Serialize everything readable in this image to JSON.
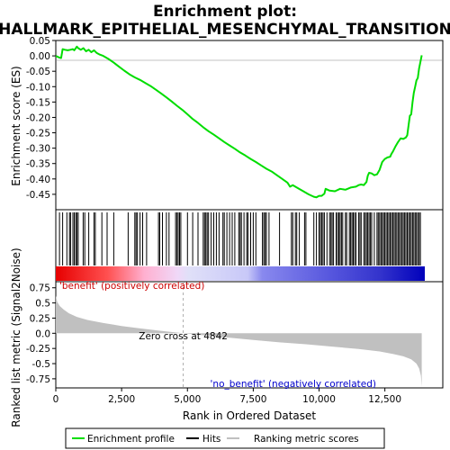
{
  "chart_data": {
    "type": "gsea-enrichment-plot",
    "title_lines": [
      "Enrichment plot:",
      "HALLMARK_EPITHELIAL_MESENCHYMAL_TRANSITION"
    ],
    "top_panel": {
      "ylabel": "Enrichment score (ES)",
      "ylim": [
        -0.5,
        0.05
      ],
      "yticks": [
        0.05,
        0.0,
        -0.05,
        -0.1,
        -0.15,
        -0.2,
        -0.25,
        -0.3,
        -0.35,
        -0.4,
        -0.45
      ],
      "ytick_labels": [
        "0.05",
        "0.00",
        "-0.05",
        "-0.10",
        "-0.15",
        "-0.20",
        "-0.25",
        "-0.30",
        "-0.35",
        "-0.40",
        "-0.45"
      ],
      "line_color": "#00dd00",
      "es_curve": {
        "x": [
          0,
          120,
          200,
          260,
          350,
          450,
          550,
          650,
          700,
          800,
          850,
          950,
          1050,
          1150,
          1250,
          1350,
          1450,
          1550,
          1650,
          1800,
          2000,
          2200,
          2400,
          2600,
          2800,
          3000,
          3200,
          3400,
          3600,
          3800,
          4000,
          4200,
          4400,
          4600,
          4800,
          5000,
          5200,
          5400,
          5600,
          5800,
          6000,
          6200,
          6400,
          6600,
          6800,
          7000,
          7200,
          7400,
          7600,
          7800,
          8000,
          8200,
          8400,
          8600,
          8800,
          8900,
          9000,
          9200,
          9400,
          9600,
          9800,
          9900,
          10000,
          10100,
          10200,
          10250,
          10400,
          10600,
          10800,
          11000,
          11200,
          11400,
          11500,
          11600,
          11700,
          11800,
          11850,
          11900,
          12000,
          12100,
          12200,
          12300,
          12400,
          12500,
          12600,
          12700,
          12750,
          12800,
          12900,
          13000,
          13100,
          13200,
          13300,
          13350,
          13400,
          13450,
          13500,
          13550,
          13600,
          13650,
          13700,
          13750,
          13800,
          13850,
          13900
        ],
        "y": [
          0.0,
          -0.005,
          -0.007,
          0.022,
          0.02,
          0.018,
          0.02,
          0.022,
          0.018,
          0.03,
          0.025,
          0.02,
          0.025,
          0.015,
          0.02,
          0.012,
          0.018,
          0.01,
          0.005,
          0.0,
          -0.01,
          -0.022,
          -0.035,
          -0.048,
          -0.06,
          -0.07,
          -0.078,
          -0.088,
          -0.098,
          -0.11,
          -0.122,
          -0.135,
          -0.148,
          -0.162,
          -0.175,
          -0.19,
          -0.205,
          -0.218,
          -0.232,
          -0.245,
          -0.256,
          -0.268,
          -0.28,
          -0.291,
          -0.302,
          -0.314,
          -0.324,
          -0.335,
          -0.345,
          -0.356,
          -0.367,
          -0.376,
          -0.388,
          -0.4,
          -0.412,
          -0.425,
          -0.42,
          -0.43,
          -0.44,
          -0.45,
          -0.458,
          -0.46,
          -0.455,
          -0.455,
          -0.448,
          -0.432,
          -0.438,
          -0.44,
          -0.432,
          -0.435,
          -0.428,
          -0.425,
          -0.42,
          -0.418,
          -0.42,
          -0.41,
          -0.39,
          -0.38,
          -0.382,
          -0.388,
          -0.385,
          -0.37,
          -0.345,
          -0.335,
          -0.33,
          -0.328,
          -0.318,
          -0.312,
          -0.295,
          -0.28,
          -0.268,
          -0.27,
          -0.265,
          -0.258,
          -0.225,
          -0.195,
          -0.19,
          -0.15,
          -0.12,
          -0.1,
          -0.08,
          -0.072,
          -0.04,
          -0.02,
          0.002
        ]
      }
    },
    "hits_panel": {
      "hit_positions": [
        140,
        260,
        420,
        520,
        560,
        650,
        700,
        760,
        800,
        850,
        1040,
        1100,
        1250,
        1450,
        1500,
        1750,
        1950,
        2200,
        2750,
        3000,
        3050,
        3100,
        3200,
        3300,
        3450,
        3900,
        3950,
        4050,
        4200,
        4300,
        4550,
        4600,
        4650,
        4700,
        4750,
        5000,
        5200,
        5400,
        5600,
        5650,
        5700,
        5750,
        5800,
        5900,
        6000,
        6100,
        6200,
        6350,
        6400,
        6500,
        6600,
        6700,
        6800,
        6950,
        7000,
        7050,
        7150,
        7250,
        7300,
        7400,
        7500,
        7600,
        7850,
        7900,
        7950,
        8000,
        8100,
        8500,
        8950,
        9000,
        9100,
        9150,
        9250,
        9450,
        9500,
        9800,
        9900,
        10000,
        10050,
        10100,
        10150,
        10200,
        10300,
        10400,
        10450,
        10500,
        10550,
        10650,
        10700,
        10750,
        10800,
        10850,
        10900,
        11000,
        11050,
        11150,
        11200,
        11250,
        11300,
        11350,
        11400,
        11500,
        11550,
        11600,
        11700,
        11750,
        11800,
        11850,
        11900,
        11950,
        12000,
        12100,
        12200,
        12250,
        12300,
        12350,
        12400,
        12450,
        12500,
        12550,
        12600,
        12650,
        12700,
        12750,
        12800,
        12850,
        12900,
        12950,
        13000,
        13050,
        13100,
        13150,
        13200,
        13250,
        13300,
        13350,
        13400,
        13450,
        13500,
        13550,
        13600,
        13650,
        13700,
        13750,
        13800,
        13850
      ]
    },
    "metric_panel": {
      "ylabel": "Ranked list metric (Signal2Noise)",
      "xlabel": "Rank in Ordered Dataset",
      "ylim": [
        -0.9,
        0.85
      ],
      "yticks": [
        0.75,
        0.5,
        0.25,
        0.0,
        -0.25,
        -0.5,
        -0.75
      ],
      "ytick_labels": [
        "0.75",
        "0.5",
        "0.25",
        "0.0",
        "-0.25",
        "-0.5",
        "-0.75"
      ],
      "xlim": [
        0,
        14700
      ],
      "xticks": [
        0,
        2500,
        5000,
        7500,
        10000,
        12500
      ],
      "xtick_labels": [
        "0",
        "2,500",
        "5,000",
        "7,500",
        "10,000",
        "12,500"
      ],
      "zero_cross_rank": 4842,
      "zero_cross_label": "Zero cross at 4842",
      "positive_label": "'benefit' (positively correlated)",
      "negative_label": "'no_benefit' (negatively correlated)",
      "positive_label_color": "#cc0000",
      "negative_label_color": "#0000cc",
      "fill_color": "#c0c0c0",
      "metric_curve": {
        "x": [
          0,
          50,
          150,
          300,
          500,
          800,
          1200,
          1800,
          2500,
          3200,
          4000,
          4842,
          5500,
          6500,
          7500,
          8500,
          9500,
          10500,
          11500,
          12300,
          12800,
          13200,
          13500,
          13700,
          13800,
          13870,
          13900
        ],
        "y": [
          0.62,
          0.52,
          0.45,
          0.39,
          0.33,
          0.27,
          0.22,
          0.17,
          0.12,
          0.08,
          0.04,
          0.0,
          -0.03,
          -0.07,
          -0.11,
          -0.15,
          -0.18,
          -0.22,
          -0.26,
          -0.3,
          -0.34,
          -0.38,
          -0.43,
          -0.5,
          -0.58,
          -0.7,
          -0.88
        ]
      },
      "total_ranks": 13900
    },
    "legend": {
      "items": [
        "Enrichment profile",
        "Hits",
        "Ranking metric scores"
      ],
      "colors": [
        "#00dd00",
        "#000000",
        "#c0c0c0"
      ]
    }
  }
}
